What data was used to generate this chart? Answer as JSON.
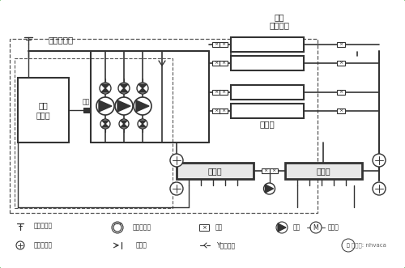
{
  "bg_color": "#ffffff",
  "border_color": "#5cb85c",
  "lc": "#333333",
  "label_outer_temp": "外温传感器",
  "label_boiler": "锅炉\n热交换器",
  "label_chiller": "制冷机",
  "label_jishui": "集水缸",
  "label_fenshui": "分水缸",
  "label_freq": "变频\n控制柜",
  "label_yidu": "一度",
  "wechat": "微信号: nhvaca",
  "legend": {
    "outer_temp": "外温传感器",
    "pressure": "压力传感器",
    "valve": "阀门",
    "temp": "温度传感器",
    "check": "逆止阀",
    "y_filter": "Y型过滤器",
    "pump": "水泵",
    "motor": "电动机"
  }
}
